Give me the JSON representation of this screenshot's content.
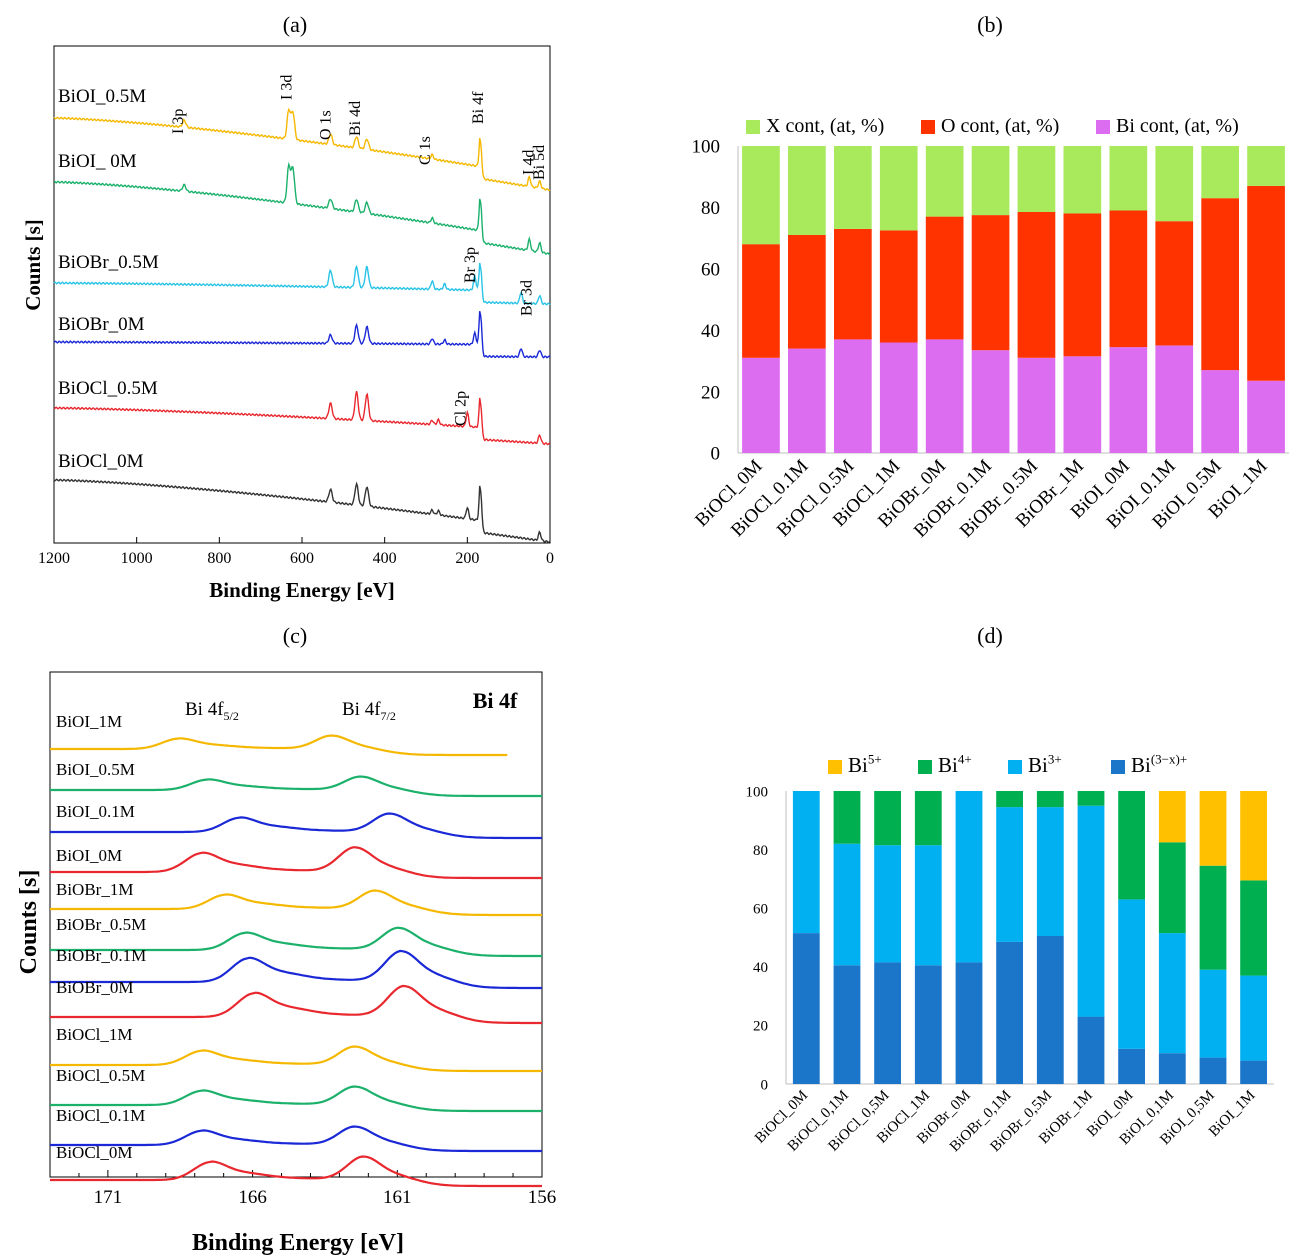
{
  "chart_data": [
    {
      "panel": "a",
      "panel_label": "(a)",
      "type": "line",
      "xlabel": "Binding Energy [eV]",
      "ylabel": "Counts [s]",
      "xlim": [
        1200,
        0
      ],
      "x_ticks": [
        1200,
        1000,
        800,
        600,
        400,
        200,
        0
      ],
      "series": [
        {
          "name": "BiOI_0.5M",
          "color": "#f5b800",
          "peaks": [
            [
              885,
              0.22
            ],
            [
              632,
              0.9
            ],
            [
              622,
              0.85
            ],
            [
              531,
              0.33
            ],
            [
              468,
              0.36
            ],
            [
              443,
              0.33
            ],
            [
              285,
              0.14
            ],
            [
              168,
              1.1
            ],
            [
              50,
              0.3
            ],
            [
              25,
              0.22
            ]
          ]
        },
        {
          "name": "BiOI_ 0M",
          "color": "#1bb16b",
          "peaks": [
            [
              885,
              0.2
            ],
            [
              632,
              1.15
            ],
            [
              622,
              1.1
            ],
            [
              531,
              0.3
            ],
            [
              468,
              0.4
            ],
            [
              443,
              0.35
            ],
            [
              285,
              0.16
            ],
            [
              168,
              1.25
            ],
            [
              50,
              0.35
            ],
            [
              25,
              0.3
            ]
          ]
        },
        {
          "name": "BiOBr_0.5M",
          "color": "#28c3e6",
          "peaks": [
            [
              531,
              0.6
            ],
            [
              468,
              0.75
            ],
            [
              443,
              0.75
            ],
            [
              285,
              0.3
            ],
            [
              255,
              0.2
            ],
            [
              182,
              0.5
            ],
            [
              168,
              1.25
            ],
            [
              70,
              0.4
            ],
            [
              25,
              0.3
            ]
          ]
        },
        {
          "name": "BiOBr_0M",
          "color": "#1a28d6",
          "peaks": [
            [
              531,
              0.3
            ],
            [
              468,
              0.65
            ],
            [
              443,
              0.6
            ],
            [
              285,
              0.2
            ],
            [
              255,
              0.15
            ],
            [
              182,
              0.4
            ],
            [
              168,
              1.5
            ],
            [
              70,
              0.3
            ],
            [
              25,
              0.25
            ]
          ]
        },
        {
          "name": "BiOCl_0.5M",
          "color": "#e8282e",
          "peaks": [
            [
              531,
              0.55
            ],
            [
              468,
              1.0
            ],
            [
              443,
              0.95
            ],
            [
              285,
              0.15
            ],
            [
              270,
              0.18
            ],
            [
              200,
              0.5
            ],
            [
              168,
              1.3
            ],
            [
              25,
              0.3
            ]
          ]
        },
        {
          "name": "BiOCl_0M",
          "color": "#333333",
          "peaks": [
            [
              531,
              0.45
            ],
            [
              468,
              0.75
            ],
            [
              443,
              0.7
            ],
            [
              285,
              0.15
            ],
            [
              270,
              0.15
            ],
            [
              200,
              0.4
            ],
            [
              168,
              1.5
            ],
            [
              25,
              0.3
            ]
          ]
        }
      ],
      "annotations": [
        {
          "text": "I 3p",
          "x": 875
        },
        {
          "text": "I 3d",
          "x": 628
        },
        {
          "text": "O 1s",
          "x": 531
        },
        {
          "text": "Bi 4d",
          "x": 460
        },
        {
          "text": "C 1s",
          "x": 285
        },
        {
          "text": "Bi 4f",
          "x": 165
        },
        {
          "text": "I 4d",
          "x": 50
        },
        {
          "text": "Bi 5d",
          "x": 25
        },
        {
          "text": "Br 3p",
          "x": 185
        },
        {
          "text": "Br 3d",
          "x": 70
        },
        {
          "text": "Cl 2p",
          "x": 200
        }
      ]
    },
    {
      "panel": "b",
      "panel_label": "(b)",
      "type": "bar",
      "stacked": true,
      "ylim": [
        0,
        100
      ],
      "y_ticks": [
        0,
        20,
        40,
        60,
        80,
        100
      ],
      "legend_position": "top",
      "categories": [
        "BiOCl_0M",
        "BiOCl_0.1M",
        "BiOCl_0.5M",
        "BiOCl_1M",
        "BiOBr_0M",
        "BiOBr_0.1M",
        "BiOBr_0.5M",
        "BiOBr_1M",
        "BiOI_0M",
        "BiOI_0.1M",
        "BiOI_0.5M",
        "BiOI_1M"
      ],
      "series": [
        {
          "name": "Bi cont, (at,  %)",
          "color": "#dc6cf0",
          "values": [
            31,
            34,
            37,
            36,
            37,
            33.5,
            31,
            31.5,
            34.5,
            35,
            27,
            23.5
          ]
        },
        {
          "name": "O cont, (at, %)",
          "color": "#ff3300",
          "values": [
            37,
            37,
            36,
            36.5,
            40,
            44,
            47.5,
            46.5,
            44.5,
            40.5,
            56,
            63.5
          ]
        },
        {
          "name": "X cont, (at, %)",
          "color": "#a8ea5c",
          "values": [
            32,
            29,
            27,
            27.5,
            23,
            22.5,
            21.5,
            22,
            21,
            24.5,
            17,
            13
          ]
        }
      ],
      "legend_order": [
        "X cont, (at, %)",
        "O cont, (at, %)",
        "Bi cont, (at,  %)"
      ]
    },
    {
      "panel": "c",
      "panel_label": "(c)",
      "type": "line",
      "title": "Bi 4f",
      "xlabel": "Binding Energy [eV]",
      "ylabel": "Counts [s]",
      "xlim": [
        173,
        156
      ],
      "x_ticks": [
        171,
        166,
        161,
        156
      ],
      "peak_labels": [
        {
          "base": "Bi 4f",
          "sub": "5/2"
        },
        {
          "base": "Bi 4f",
          "sub": "7/2"
        }
      ],
      "series": [
        {
          "name": "BiOI_1M",
          "color": "#f5b800",
          "p1": 168.6,
          "p2": 163.3,
          "h": 0.55
        },
        {
          "name": "BiOI_0.5M",
          "color": "#1bb16b",
          "p1": 167.6,
          "p2": 162.3,
          "h": 0.55
        },
        {
          "name": "BiOI_0.1M",
          "color": "#1a28d6",
          "p1": 166.5,
          "p2": 161.3,
          "h": 0.75
        },
        {
          "name": "BiOI_0M",
          "color": "#e8282e",
          "p1": 167.8,
          "p2": 162.5,
          "h": 1.0
        },
        {
          "name": "BiOBr_1M",
          "color": "#f5b800",
          "p1": 167.0,
          "p2": 161.8,
          "h": 0.75
        },
        {
          "name": "BiOBr_0.5M",
          "color": "#1bb16b",
          "p1": 166.3,
          "p2": 161.0,
          "h": 0.9
        },
        {
          "name": "BiOBr_0.1M",
          "color": "#1a28d6",
          "p1": 166.2,
          "p2": 160.9,
          "h": 1.25
        },
        {
          "name": "BiOBr_0M",
          "color": "#e8282e",
          "p1": 166.0,
          "p2": 160.8,
          "h": 1.25
        },
        {
          "name": "BiOCl_1M",
          "color": "#f5b800",
          "p1": 167.8,
          "p2": 162.5,
          "h": 0.75
        },
        {
          "name": "BiOCl_0.5M",
          "color": "#1bb16b",
          "p1": 167.8,
          "p2": 162.5,
          "h": 0.75
        },
        {
          "name": "BiOCl_0.1M",
          "color": "#1a28d6",
          "p1": 167.8,
          "p2": 162.5,
          "h": 0.75
        },
        {
          "name": "BiOCl_0M",
          "color": "#e8282e",
          "p1": 167.5,
          "p2": 162.2,
          "h": 0.95
        }
      ]
    },
    {
      "panel": "d",
      "panel_label": "(d)",
      "type": "bar",
      "stacked": true,
      "ylim": [
        0,
        100
      ],
      "y_ticks": [
        0,
        20,
        40,
        60,
        80,
        100
      ],
      "legend_position": "top",
      "categories": [
        "BiOCl_0M",
        "BiOCl_0,1M",
        "BiOCl_0,5M",
        "BiOCl_1M",
        "BiOBr_0M",
        "BiOBr_0,1M",
        "BiOBr_0,5M",
        "BiOBr_1M",
        "BiOI_0M",
        "BiOI_0,1M",
        "BiOI_0,5M",
        "BiOI_1M"
      ],
      "series": [
        {
          "name": "Bi(3−x)+",
          "base": "Bi",
          "sup": "(3−x)+",
          "color": "#1b75c8",
          "values": [
            51.5,
            40.5,
            41.5,
            40.5,
            41.5,
            48.5,
            50.5,
            23,
            12,
            10.5,
            9,
            8
          ]
        },
        {
          "name": "Bi3+",
          "base": "Bi",
          "sup": "3+",
          "color": "#00b0f0",
          "values": [
            48.5,
            41.5,
            40,
            41,
            58.5,
            46,
            44,
            72,
            51,
            41,
            30,
            29
          ]
        },
        {
          "name": "Bi4+",
          "base": "Bi",
          "sup": "4+",
          "color": "#00b050",
          "values": [
            0,
            18,
            18.5,
            18.5,
            0,
            5.5,
            5.5,
            5,
            37,
            31,
            35.5,
            32.5
          ]
        },
        {
          "name": "Bi5+",
          "base": "Bi",
          "sup": "5+",
          "color": "#ffc000",
          "values": [
            0,
            0,
            0,
            0,
            0,
            0,
            0,
            0,
            0,
            17.5,
            25.5,
            30.5
          ]
        }
      ],
      "legend_order": [
        "Bi5+",
        "Bi4+",
        "Bi3+",
        "Bi(3−x)+"
      ]
    }
  ]
}
